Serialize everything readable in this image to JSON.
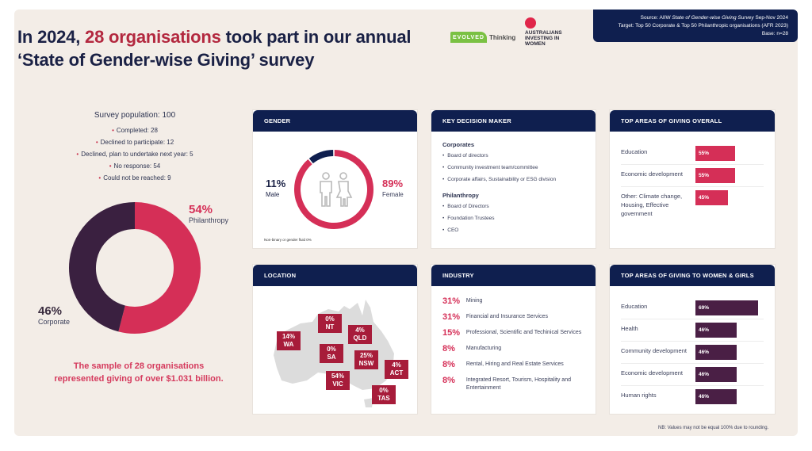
{
  "header": {
    "title_pre": "In 2024,",
    "title_highlight": "28 organisations",
    "title_post": "took part in our annual ‘State of Gender-wise Giving’ survey",
    "logo_evolved": "EVOLVED",
    "logo_thinking": "Thinking",
    "logo_aiw": "AUSTRALIANS INVESTING IN WOMEN",
    "source_label": "Source: AIIW",
    "source_italic": "State of Gender-wise Giving Survey",
    "source_dates": "Sep-Nov 2024",
    "target": "Target: Top 50 Corporate & Top 50 Philanthropic organisations (AFR 2023)",
    "base": "Base: n=28"
  },
  "survey": {
    "heading": "Survey population: 100",
    "items": [
      "Completed: 28",
      "Declined to participate: 12",
      "Declined, plan to undertake next year: 5",
      "No response: 54",
      "Could not be reached: 9"
    ],
    "bullet": "•"
  },
  "summary": {
    "sample_line1": "The sample of 28 organisations",
    "sample_line2": "represented giving of over $1.031 billion."
  },
  "colors": {
    "navy": "#0f1f4f",
    "pink": "#d52f57",
    "plum": "#3a2040",
    "maroon": "#a71c3a",
    "women_bar": "#4a1f45"
  },
  "chart_data": [
    {
      "type": "pie",
      "title": "Respondent type",
      "categories": [
        "Philanthropy",
        "Corporate"
      ],
      "values": [
        54,
        46
      ],
      "labels": [
        "54%",
        "46%"
      ],
      "colors": [
        "#d52f57",
        "#3a2040"
      ]
    },
    {
      "type": "pie",
      "title": "GENDER",
      "categories": [
        "Female",
        "Male",
        "Non-binary or gender fluid"
      ],
      "values": [
        89,
        11,
        0
      ],
      "labels": [
        "89%",
        "11%",
        "0%"
      ],
      "note": "Non-binary or gender fluid 0%",
      "colors": [
        "#d52f57",
        "#0f1f4f",
        "#cccccc"
      ]
    },
    {
      "type": "bar",
      "title": "TOP AREAS OF GIVING OVERALL",
      "categories": [
        "Education",
        "Economic development",
        "Other: Climate change, Housing, Effective government"
      ],
      "values": [
        55,
        55,
        45
      ],
      "labels": [
        "55%",
        "55%",
        "45%"
      ],
      "orientation": "horizontal"
    },
    {
      "type": "table",
      "title": "LOCATION",
      "categories": [
        "WA",
        "NT",
        "QLD",
        "SA",
        "NSW",
        "ACT",
        "VIC",
        "TAS"
      ],
      "values": [
        14,
        0,
        4,
        0,
        25,
        4,
        54,
        0
      ],
      "labels": [
        "14%",
        "0%",
        "4%",
        "0%",
        "25%",
        "4%",
        "54%",
        "0%"
      ]
    },
    {
      "type": "table",
      "title": "INDUSTRY",
      "categories": [
        "Mining",
        "Financial and Insurance Services",
        "Professional, Scientific and Techinical Services",
        "Manufacturing",
        "Rental, Hiring and Real Estate Services",
        "Integrated Resort, Tourism, Hospitality and Entertainment"
      ],
      "values": [
        31,
        31,
        15,
        8,
        8,
        8
      ],
      "labels": [
        "31%",
        "31%",
        "15%",
        "8%",
        "8%",
        "8%"
      ]
    },
    {
      "type": "bar",
      "title": "TOP AREAS OF GIVING TO WOMEN & GIRLS",
      "categories": [
        "Education",
        "Health",
        "Community development",
        "Economic development",
        "Human rights"
      ],
      "values": [
        69,
        46,
        46,
        46,
        46
      ],
      "labels": [
        "69%",
        "46%",
        "46%",
        "46%",
        "46%"
      ],
      "orientation": "horizontal"
    }
  ],
  "cards": {
    "gender": {
      "title": "GENDER",
      "male_pct": "11%",
      "male_label": "Male",
      "female_pct": "89%",
      "female_label": "Female",
      "note": "Non-binary or gender fluid 0%"
    },
    "kdm": {
      "title": "KEY DECISION MAKER",
      "corporates_heading": "Corporates",
      "corporates": [
        "Board of directors",
        "Community investment team/committee",
        "Corporate affairs, Sustainability or ESG division"
      ],
      "philanthropy_heading": "Philanthropy",
      "philanthropy": [
        "Board of Directors",
        "Foundation Trustees",
        "CEO"
      ]
    },
    "location": {
      "title": "LOCATION"
    },
    "industry": {
      "title": "INDUSTRY"
    },
    "top_overall": {
      "title": "TOP AREAS OF GIVING OVERALL"
    },
    "top_women": {
      "title": "TOP AREAS OF GIVING TO WOMEN & GIRLS"
    }
  },
  "footer": {
    "note": "NB: Values may not be equal 100% due to rounding."
  }
}
